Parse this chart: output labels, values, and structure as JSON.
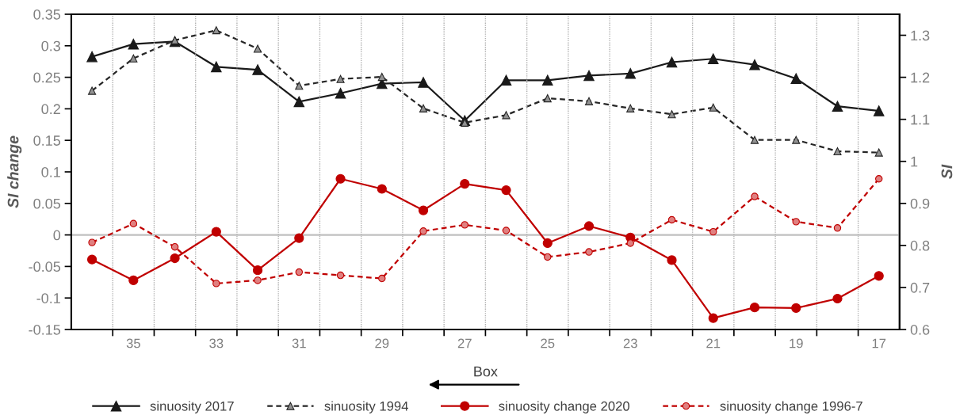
{
  "chart_data": {
    "type": "line",
    "xlabel": "Box",
    "ylabel": "SI change",
    "y2label": "SI",
    "categories": [
      null,
      "35",
      null,
      "33",
      null,
      "31",
      null,
      "29",
      null,
      "27",
      null,
      "25",
      null,
      "23",
      null,
      "21",
      null,
      "19",
      null,
      "17"
    ],
    "series": [
      {
        "name": "sinuosity 2017",
        "color": "#1a1a1a",
        "axis": "y2",
        "marker": "triangle",
        "line_style": "solid",
        "values": [
          1.249,
          1.279,
          1.285,
          1.225,
          1.218,
          1.142,
          1.162,
          1.185,
          1.188,
          1.097,
          1.193,
          1.193,
          1.204,
          1.209,
          1.236,
          1.244,
          1.23,
          1.197,
          1.131,
          1.12
        ]
      },
      {
        "name": "sinuosity 1994",
        "color": "#262626",
        "axis": "y2",
        "marker": "triangle",
        "line_style": "dashed",
        "values": [
          1.168,
          1.245,
          1.288,
          1.312,
          1.268,
          1.18,
          1.196,
          1.201,
          1.126,
          1.092,
          1.11,
          1.15,
          1.143,
          1.126,
          1.112,
          1.128,
          1.051,
          1.051,
          1.024,
          1.021
        ]
      },
      {
        "name": "sinuosity change 2020",
        "color": "#c00000",
        "axis": "y",
        "marker": "circle",
        "line_style": "solid",
        "values": [
          -0.039,
          -0.072,
          -0.037,
          0.005,
          -0.056,
          -0.005,
          0.089,
          0.073,
          0.039,
          0.081,
          0.071,
          -0.013,
          0.014,
          -0.004,
          -0.04,
          -0.132,
          -0.115,
          -0.116,
          -0.101,
          -0.065
        ]
      },
      {
        "name": "sinuosity change 1996-7",
        "color": "#c00000",
        "axis": "y",
        "marker": "circle",
        "line_style": "dashed",
        "values": [
          -0.012,
          0.018,
          -0.019,
          -0.077,
          -0.072,
          -0.059,
          -0.064,
          -0.069,
          0.006,
          0.016,
          0.007,
          -0.035,
          -0.027,
          -0.013,
          0.024,
          0.005,
          0.061,
          0.021,
          0.011,
          0.089
        ]
      }
    ],
    "ylim": [
      -0.15,
      0.35
    ],
    "yticks": [
      -0.15,
      -0.1,
      -0.05,
      0,
      0.05,
      0.1,
      0.15,
      0.2,
      0.25,
      0.3,
      0.35
    ],
    "y2lim": [
      0.6,
      1.35
    ],
    "y2ticks": [
      0.6,
      0.7,
      0.8,
      0.9,
      {
        "value": 1.0,
        "label": "1"
      },
      1.1,
      1.2,
      1.3
    ],
    "ref_lines": [
      {
        "axis": "y",
        "value": 0,
        "color": "#bfbfbf"
      }
    ],
    "grid": "x",
    "legend": "bottom"
  }
}
